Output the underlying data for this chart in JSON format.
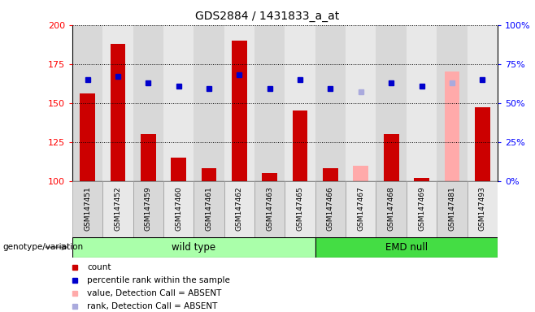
{
  "title": "GDS2884 / 1431833_a_at",
  "samples": [
    "GSM147451",
    "GSM147452",
    "GSM147459",
    "GSM147460",
    "GSM147461",
    "GSM147462",
    "GSM147463",
    "GSM147465",
    "GSM147466",
    "GSM147467",
    "GSM147468",
    "GSM147469",
    "GSM147481",
    "GSM147493"
  ],
  "bar_values": [
    156,
    188,
    130,
    115,
    108,
    190,
    105,
    145,
    108,
    110,
    130,
    102,
    170,
    147
  ],
  "bar_colors": [
    "#cc0000",
    "#cc0000",
    "#cc0000",
    "#cc0000",
    "#cc0000",
    "#cc0000",
    "#cc0000",
    "#cc0000",
    "#cc0000",
    "#ffaaaa",
    "#cc0000",
    "#cc0000",
    "#ffaaaa",
    "#cc0000"
  ],
  "rank_values": [
    65,
    67,
    63,
    61,
    59,
    68,
    59,
    65,
    59,
    57,
    63,
    61,
    63,
    65
  ],
  "rank_colors": [
    "#0000cc",
    "#0000cc",
    "#0000cc",
    "#0000cc",
    "#0000cc",
    "#0000cc",
    "#0000cc",
    "#0000cc",
    "#0000cc",
    "#aaaadd",
    "#0000cc",
    "#0000cc",
    "#aaaadd",
    "#0000cc"
  ],
  "ylim_left": [
    100,
    200
  ],
  "ylim_right": [
    0,
    100
  ],
  "yticks_left": [
    100,
    125,
    150,
    175,
    200
  ],
  "yticks_right": [
    0,
    25,
    50,
    75,
    100
  ],
  "ytick_labels_right": [
    "0%",
    "25%",
    "50%",
    "75%",
    "100%"
  ],
  "groups": [
    {
      "label": "wild type",
      "start": 0,
      "end": 7,
      "color": "#aaffaa"
    },
    {
      "label": "EMD null",
      "start": 8,
      "end": 13,
      "color": "#44dd44"
    }
  ],
  "genotype_label": "genotype/variation",
  "legend_items": [
    {
      "color": "#cc0000",
      "label": "count"
    },
    {
      "color": "#0000cc",
      "label": "percentile rank within the sample"
    },
    {
      "color": "#ffaaaa",
      "label": "value, Detection Call = ABSENT"
    },
    {
      "color": "#aaaadd",
      "label": "rank, Detection Call = ABSENT"
    }
  ],
  "plot_bg": "#ffffff",
  "col_bg_even": "#d8d8d8",
  "col_bg_odd": "#e8e8e8"
}
